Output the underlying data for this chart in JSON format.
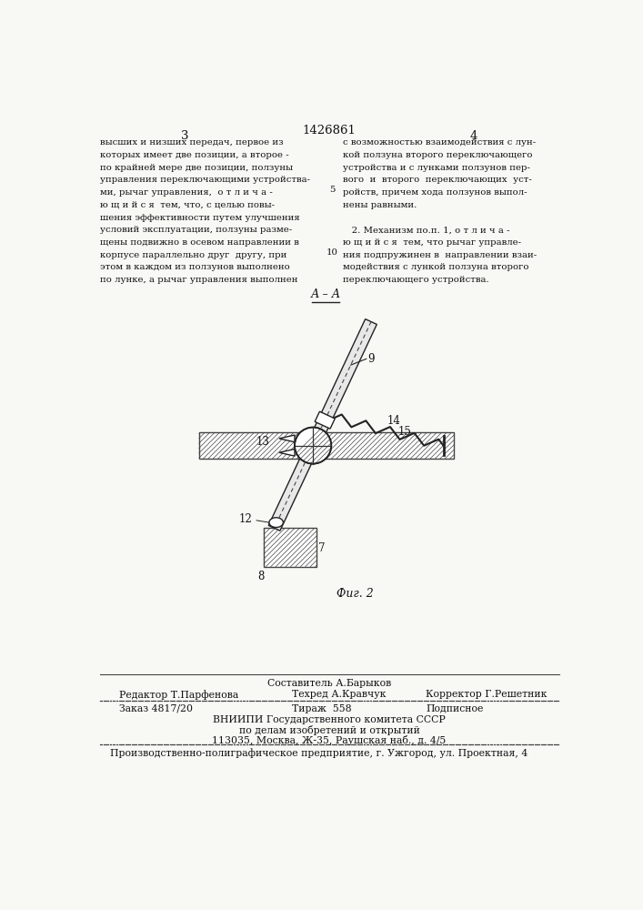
{
  "bg_color": "#f8f8f5",
  "title_number": "1426861",
  "page_left": "3",
  "page_right": "4",
  "left_column_text": [
    "высших и низших передач, первое из",
    "которых имеет две позиции, а второе -",
    "по крайней мере две позиции, ползуны",
    "управления переключающими устройства-",
    "ми, рычаг управления,  о т л и ч а -",
    "ю щ и й с я  тем, что, с целью повы-",
    "шения эффективности путем улучшения",
    "условий эксплуатации, ползуны разме-",
    "щены подвижно в осевом направлении в",
    "корпусе параллельно друг  другу, при",
    "этом в каждом из ползунов выполнено",
    "по лунке, а рычаг управления выполнен"
  ],
  "right_column_text": [
    "с возможностью взаимодействия с лун-",
    "кой ползуна второго переключающего",
    "устройства и с лунками ползунов пер-",
    "вого  и  второго  переключающих  уст-",
    "ройств, причем хода ползунов выпол-",
    "нены равными.",
    "",
    "   2. Механизм по.п. 1, о т л и ч а -",
    "ю щ и й с я  тем, что рычаг управле-",
    "ния подпружинен в  направлении взаи-",
    "модействия с лункой ползуна второго",
    "переключающего устройства."
  ],
  "line_number_5": "5",
  "line_number_10": "10",
  "fig_label": "Фиг. 2",
  "bottom_text_1": "Составитель А.Барыков",
  "bottom_text_2_left": "Редактор Т.Парфенова",
  "bottom_text_2_mid": "Техред А.Кравчук",
  "bottom_text_2_right": "Корректор Г.Решетник",
  "bottom_text_3_left": "Заказ 4817/20",
  "bottom_text_3_mid": "Тираж  558",
  "bottom_text_3_right": "Подписное",
  "bottom_text_4": "ВНИИПИ Государственного комитета СССР",
  "bottom_text_5": "по делам изобретений и открытий",
  "bottom_text_6": "113035, Москва, Ж-35, Раушская наб., д. 4/5",
  "bottom_text_7": "Производственно-полиграфическое предприятие, г. Ужгород, ул. Проектная, 4"
}
